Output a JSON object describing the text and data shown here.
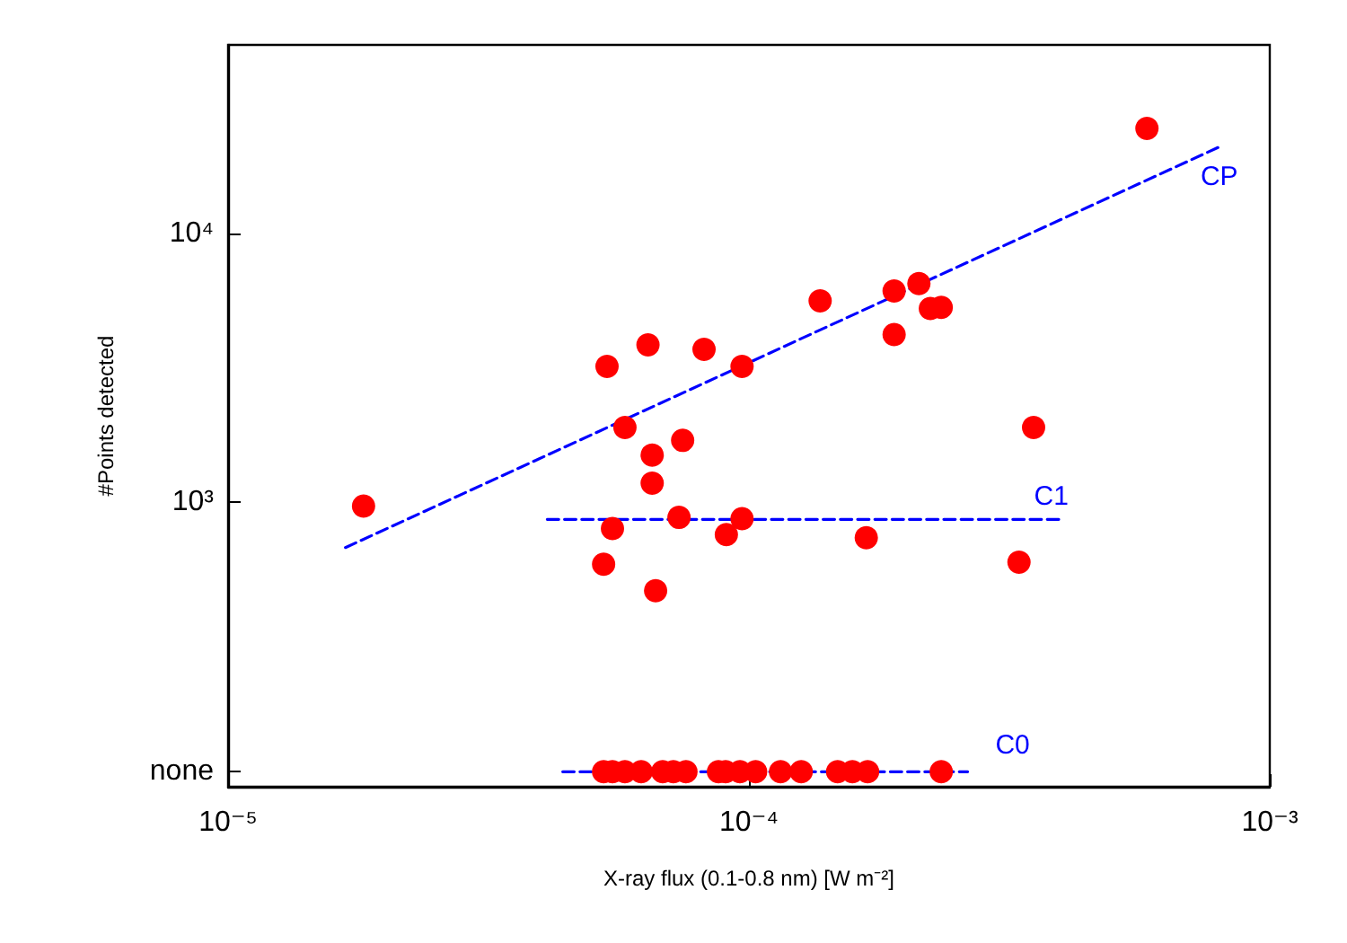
{
  "chart_data": {
    "type": "scatter",
    "xlabel": "X-ray flux (0.1-0.8 nm) [W m⁻²]",
    "ylabel": "#Points detected",
    "log": "xy",
    "grid": false,
    "legend": false,
    "marker": "circle",
    "xlim": [
      1e-05,
      0.001
    ],
    "xticks": [
      {
        "value": 1e-05,
        "label": "10⁻⁵"
      },
      {
        "value": 0.0001,
        "label": "10⁻⁴"
      },
      {
        "value": 0.001,
        "label": "10⁻³"
      }
    ],
    "ylim": [
      88,
      50000
    ],
    "yticks": [
      {
        "value": 100,
        "label": "none"
      },
      {
        "value": 1000,
        "label": "10³"
      },
      {
        "value": 10000,
        "label": "10⁴"
      }
    ],
    "series": [
      {
        "color": "#ff0000",
        "x": [
          0.000581,
          0.000137,
          0.00019,
          0.000212,
          0.000223,
          0.000234,
          0.00019,
          5.34e-05,
          6.4e-05,
          8.2e-05,
          9.7e-05,
          1.82e-05,
          5.78e-05,
          7.46e-05,
          6.52e-05,
          6.52e-05,
          0.000352,
          5.47e-05,
          7.34e-05,
          9.7e-05,
          9.05e-05,
          0.000168,
          5.26e-05,
          6.62e-05,
          0.00033,
          5.26e-05,
          5.47e-05,
          5.78e-05,
          6.21e-05,
          6.83e-05,
          7.16e-05,
          7.57e-05,
          8.74e-05,
          9.02e-05,
          9.61e-05,
          0.000103,
          0.000115,
          0.000126,
          0.000148,
          0.000158,
          0.000169,
          0.000234
        ],
        "values": [
          24500,
          5600,
          6100,
          6500,
          5250,
          5300,
          4200,
          3200,
          3850,
          3700,
          3200,
          970,
          1900,
          1700,
          1500,
          1180,
          1900,
          800,
          880,
          870,
          760,
          740,
          590,
          470,
          600,
          100,
          100,
          100,
          100,
          100,
          100,
          100,
          100,
          100,
          100,
          100,
          100,
          100,
          100,
          100,
          100,
          100
        ]
      },
      {
        "type": "line",
        "name": "CP",
        "color": "#0000ff",
        "line_style": "dashed",
        "marker": "none",
        "x": [
          1.68e-05,
          0.0008
        ],
        "values": [
          680,
          20900
        ]
      },
      {
        "type": "line",
        "name": "C1",
        "color": "#0000ff",
        "line_style": "dashed",
        "marker": "none",
        "x": [
          4.1e-05,
          0.000396
        ],
        "values": [
          865,
          865
        ]
      },
      {
        "type": "line",
        "name": "C0",
        "color": "#0000ff",
        "line_style": "dashed",
        "marker": "none",
        "x": [
          4.39e-05,
          0.000263
        ],
        "values": [
          100,
          100
        ]
      }
    ]
  }
}
